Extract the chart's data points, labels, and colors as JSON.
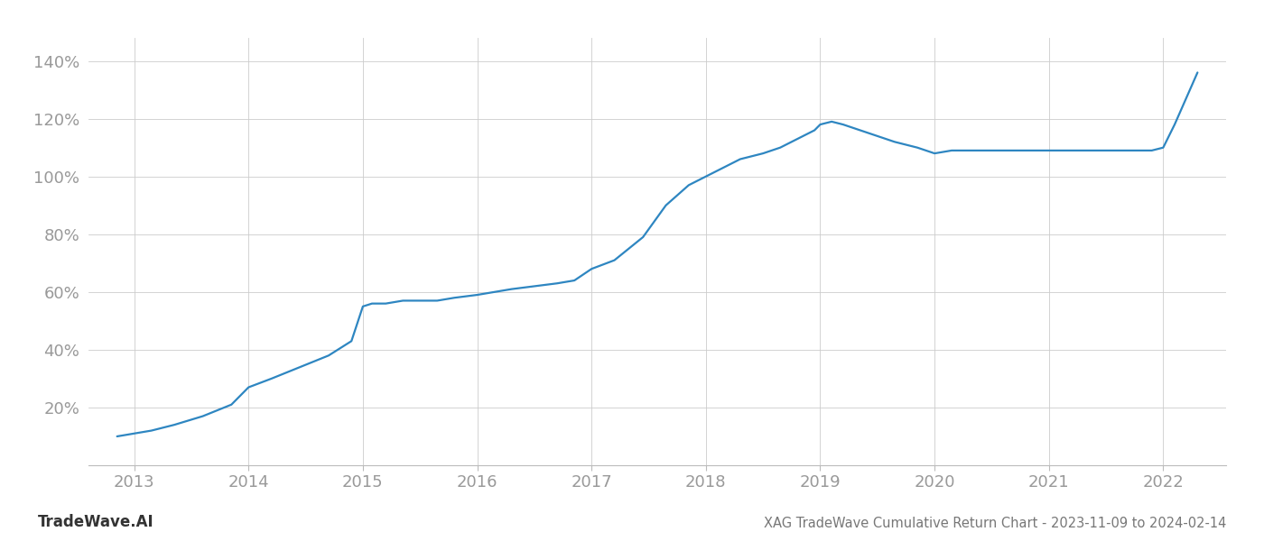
{
  "title": "XAG TradeWave Cumulative Return Chart - 2023-11-09 to 2024-02-14",
  "watermark": "TradeWave.AI",
  "line_color": "#2e86c1",
  "line_width": 1.6,
  "background_color": "#ffffff",
  "grid_color": "#cccccc",
  "x_years": [
    2013,
    2014,
    2015,
    2016,
    2017,
    2018,
    2019,
    2020,
    2021,
    2022
  ],
  "y_ticks": [
    20,
    40,
    60,
    80,
    100,
    120,
    140
  ],
  "ylim": [
    0,
    148
  ],
  "xlim": [
    2012.6,
    2022.55
  ],
  "data_x": [
    2012.85,
    2013.0,
    2013.15,
    2013.35,
    2013.6,
    2013.85,
    2014.0,
    2014.2,
    2014.45,
    2014.7,
    2014.9,
    2015.0,
    2015.08,
    2015.2,
    2015.35,
    2015.5,
    2015.65,
    2015.8,
    2016.0,
    2016.15,
    2016.3,
    2016.5,
    2016.7,
    2016.85,
    2017.0,
    2017.2,
    2017.45,
    2017.65,
    2017.85,
    2018.0,
    2018.15,
    2018.3,
    2018.5,
    2018.65,
    2018.8,
    2018.95,
    2019.0,
    2019.1,
    2019.2,
    2019.35,
    2019.5,
    2019.65,
    2019.75,
    2019.85,
    2020.0,
    2020.15,
    2020.35,
    2020.6,
    2020.85,
    2021.0,
    2021.2,
    2021.5,
    2021.75,
    2021.9,
    2022.0,
    2022.1,
    2022.2,
    2022.3
  ],
  "data_y": [
    10,
    11,
    12,
    14,
    17,
    21,
    27,
    30,
    34,
    38,
    43,
    55,
    56,
    56,
    57,
    57,
    57,
    58,
    59,
    60,
    61,
    62,
    63,
    64,
    68,
    71,
    79,
    90,
    97,
    100,
    103,
    106,
    108,
    110,
    113,
    116,
    118,
    119,
    118,
    116,
    114,
    112,
    111,
    110,
    108,
    109,
    109,
    109,
    109,
    109,
    109,
    109,
    109,
    109,
    110,
    118,
    127,
    136
  ]
}
